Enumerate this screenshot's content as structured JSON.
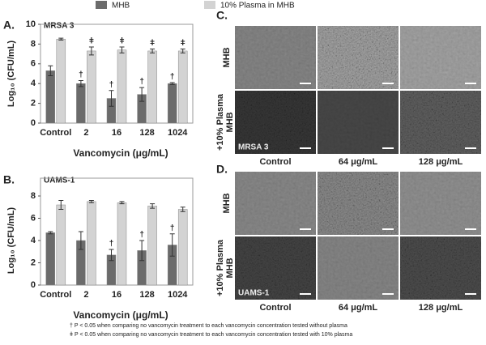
{
  "chart_data": [
    {
      "type": "bar",
      "panel": "A.",
      "title": "MRSA 3",
      "xlabel": "Vancomycin (μg/mL)",
      "ylabel": "Log₁₀ (CFU/mL)",
      "categories": [
        "Control",
        "2",
        "16",
        "128",
        "1024"
      ],
      "series": [
        {
          "name": "MHB",
          "color": "#6b6b6b",
          "values": [
            5.3,
            4.0,
            2.5,
            2.9,
            4.0
          ],
          "errors": [
            0.5,
            0.3,
            0.8,
            0.7,
            0.1
          ],
          "markers": [
            null,
            "†",
            "†",
            "†",
            "†"
          ]
        },
        {
          "name": "10% Plasma in MHB",
          "color": "#d3d3d3",
          "values": [
            8.5,
            7.3,
            7.4,
            7.3,
            7.3
          ],
          "errors": [
            0.1,
            0.4,
            0.3,
            0.2,
            0.2
          ],
          "markers": [
            null,
            "ǂ",
            "ǂ",
            "ǂ",
            "ǂ"
          ]
        }
      ],
      "ylim": [
        0,
        10
      ],
      "yticks": [
        0,
        2,
        4,
        6,
        8,
        10
      ]
    },
    {
      "type": "bar",
      "panel": "B.",
      "title": "UAMS-1",
      "xlabel": "Vancomycin (μg/mL)",
      "ylabel": "Log₁₀ (CFU/mL)",
      "categories": [
        "Control",
        "2",
        "16",
        "128",
        "1024"
      ],
      "series": [
        {
          "color": "#6b6b6b",
          "values": [
            4.7,
            4.0,
            2.7,
            3.1,
            3.6
          ],
          "errors": [
            0.1,
            0.8,
            0.5,
            0.9,
            1.0
          ],
          "markers": [
            null,
            null,
            "†",
            "†",
            "†"
          ]
        },
        {
          "color": "#d3d3d3",
          "values": [
            7.2,
            7.5,
            7.4,
            7.1,
            6.8
          ],
          "errors": [
            0.4,
            0.1,
            0.1,
            0.2,
            0.2
          ]
        }
      ],
      "ylim": [
        0,
        8
      ],
      "yticks": [
        0,
        2,
        4,
        6,
        8
      ]
    }
  ],
  "images": [
    {
      "panel": "C.",
      "strain": "MRSA 3",
      "rows": [
        "MHB",
        "+10% Plasma",
        "MHB"
      ],
      "columns": [
        "Control",
        "64 μg/mL",
        "128 μg/mL"
      ]
    },
    {
      "panel": "D.",
      "strain": "UAMS-1",
      "rows": [
        "MHB",
        "+10% Plasma",
        "MHB"
      ],
      "columns": [
        "Control",
        "64 μg/mL",
        "128 μg/mL"
      ]
    }
  ],
  "footnotes": [
    "† P < 0.05 when comparing no vancomycin treatment to each vancomycin concentration tested without plasma",
    "ǂ P < 0.05 when comparing no vancomycin treatment to each vancomycin concentration tested with 10% plasma"
  ]
}
